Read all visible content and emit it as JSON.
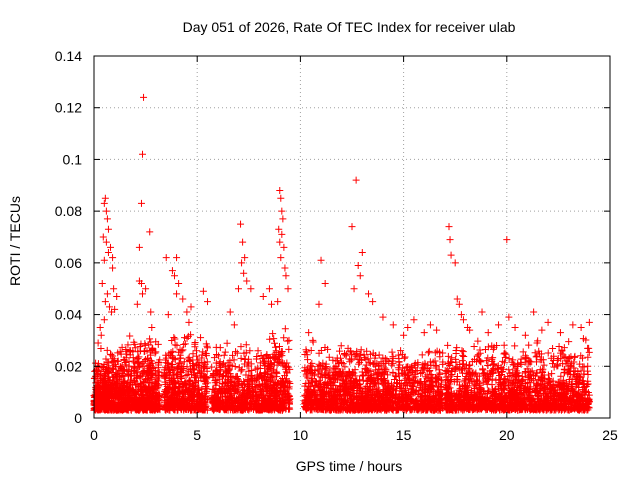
{
  "chart_data": {
    "type": "scatter",
    "title": "Day 051 of 2026, Rate Of TEC Index for receiver ulab",
    "xlabel": "GPS time / hours",
    "ylabel": "ROTI / TECUs",
    "xlim": [
      0,
      25
    ],
    "ylim": [
      0,
      0.14
    ],
    "x_ticks": [
      0,
      5,
      10,
      15,
      20,
      25
    ],
    "y_ticks": [
      0,
      0.02,
      0.04,
      0.06,
      0.08,
      0.1,
      0.12,
      0.14
    ],
    "x_tick_labels": [
      "0",
      "5",
      "10",
      "15",
      "20",
      "25"
    ],
    "y_tick_labels": [
      "0",
      "0.02",
      "0.04",
      "0.06",
      "0.08",
      "0.1",
      "0.12",
      "0.14"
    ],
    "grid": true,
    "legend": "none",
    "marker": "+",
    "color": "#ff0000",
    "series": [
      {
        "x": [
          0.5,
          0.55,
          0.6,
          0.65,
          0.7,
          0.45,
          0.8,
          0.6,
          0.7,
          0.5,
          0.9,
          0.4,
          0.95,
          0.65,
          0.75,
          0.55,
          0.85,
          0.5,
          0.3,
          0.35,
          1.0,
          1.1,
          0.2,
          0.9,
          2.2,
          2.3,
          2.35,
          2.4,
          2.3,
          2.35,
          2.2,
          2.1,
          2.5,
          2.7,
          2.8,
          2.75,
          3.5,
          3.8,
          4.0,
          3.9,
          4.1,
          4.0,
          4.3,
          4.5,
          4.6,
          3.6,
          4.7,
          5.3,
          5.5,
          7.1,
          7.2,
          7.3,
          7.15,
          7.25,
          7.4,
          7.0,
          6.6,
          6.8,
          7.6,
          8.2,
          8.5,
          8.6,
          9.0,
          9.05,
          9.1,
          9.15,
          8.95,
          9.1,
          9.2,
          9.0,
          9.05,
          9.25,
          9.3,
          9.4,
          8.9,
          10.4,
          10.6,
          10.9,
          11.0,
          11.2,
          12.5,
          12.7,
          12.8,
          13.0,
          12.9,
          12.6,
          13.3,
          13.5,
          14.0,
          14.5,
          15.0,
          15.2,
          15.5,
          16.0,
          16.3,
          16.6,
          17.2,
          17.25,
          17.3,
          17.5,
          17.6,
          17.7,
          17.8,
          17.9,
          18.1,
          18.2,
          18.8,
          19.1,
          19.6,
          20.0,
          20.1,
          20.4,
          20.9,
          21.3,
          21.7,
          22.0,
          22.6,
          23.2,
          23.6,
          24.0
        ],
        "y": [
          0.083,
          0.085,
          0.08,
          0.077,
          0.073,
          0.07,
          0.066,
          0.068,
          0.064,
          0.061,
          0.058,
          0.052,
          0.05,
          0.048,
          0.043,
          0.045,
          0.041,
          0.038,
          0.035,
          0.032,
          0.042,
          0.047,
          0.029,
          0.062,
          0.066,
          0.083,
          0.102,
          0.124,
          0.052,
          0.048,
          0.053,
          0.044,
          0.05,
          0.072,
          0.035,
          0.041,
          0.062,
          0.057,
          0.062,
          0.055,
          0.052,
          0.048,
          0.046,
          0.041,
          0.037,
          0.04,
          0.043,
          0.049,
          0.045,
          0.075,
          0.068,
          0.062,
          0.06,
          0.056,
          0.053,
          0.05,
          0.041,
          0.036,
          0.05,
          0.047,
          0.05,
          0.044,
          0.088,
          0.085,
          0.08,
          0.077,
          0.073,
          0.071,
          0.066,
          0.068,
          0.062,
          0.058,
          0.055,
          0.05,
          0.045,
          0.033,
          0.03,
          0.044,
          0.061,
          0.052,
          0.074,
          0.092,
          0.059,
          0.064,
          0.055,
          0.05,
          0.048,
          0.045,
          0.039,
          0.036,
          0.032,
          0.035,
          0.038,
          0.033,
          0.036,
          0.034,
          0.074,
          0.069,
          0.063,
          0.06,
          0.046,
          0.044,
          0.04,
          0.038,
          0.035,
          0.034,
          0.041,
          0.033,
          0.036,
          0.069,
          0.039,
          0.035,
          0.032,
          0.041,
          0.034,
          0.037,
          0.033,
          0.036,
          0.035,
          0.037
        ]
      }
    ],
    "dense_band": {
      "description_note": "dense noise floor of points",
      "segments": [
        {
          "x_range": [
            0.0,
            0.7
          ],
          "y_range": [
            0.003,
            0.028
          ],
          "count": 280
        },
        {
          "x_range": [
            0.7,
            1.5
          ],
          "y_range": [
            0.003,
            0.03
          ],
          "count": 260
        },
        {
          "x_range": [
            1.5,
            3.2
          ],
          "y_range": [
            0.003,
            0.033
          ],
          "count": 520
        },
        {
          "x_range": [
            3.4,
            5.5
          ],
          "y_range": [
            0.003,
            0.035
          ],
          "count": 560
        },
        {
          "x_range": [
            5.7,
            8.3
          ],
          "y_range": [
            0.003,
            0.03
          ],
          "count": 560
        },
        {
          "x_range": [
            8.3,
            9.5
          ],
          "y_range": [
            0.003,
            0.036
          ],
          "count": 320
        },
        {
          "x_range": [
            10.2,
            16.9
          ],
          "y_range": [
            0.003,
            0.03
          ],
          "count": 1500
        },
        {
          "x_range": [
            17.0,
            24.0
          ],
          "y_range": [
            0.003,
            0.031
          ],
          "count": 1500
        }
      ]
    }
  }
}
